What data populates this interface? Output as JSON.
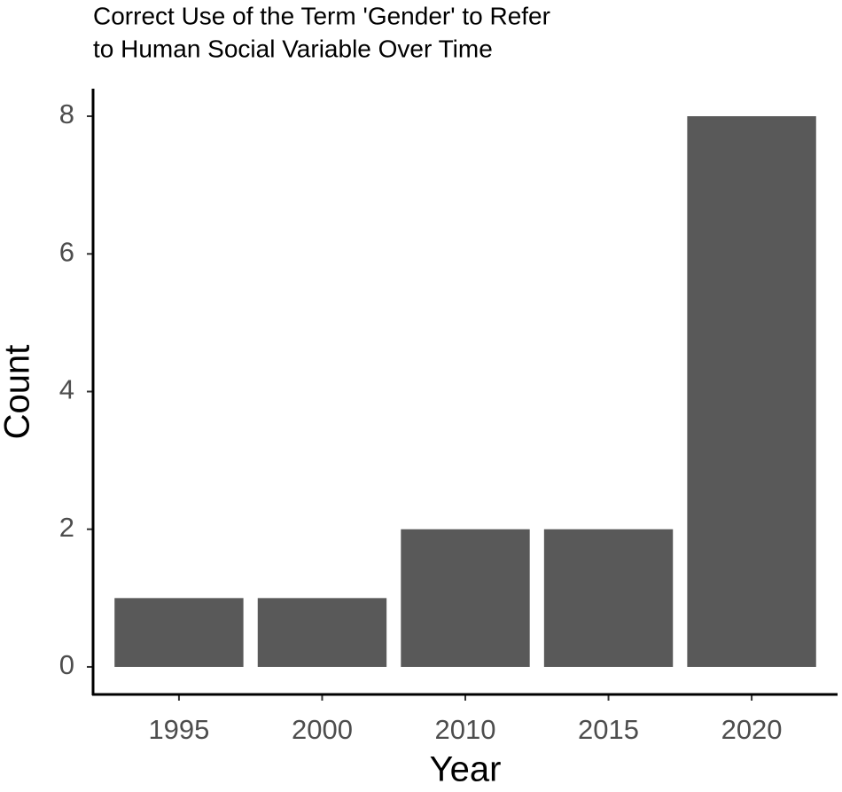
{
  "chart_data": {
    "type": "bar",
    "title_lines": [
      "Correct Use of the Term 'Gender' to Refer",
      "to Human Social Variable Over Time"
    ],
    "x_label": "Year",
    "y_label": "Count",
    "categories": [
      "1995",
      "2000",
      "2010",
      "2015",
      "2020"
    ],
    "values": [
      1,
      1,
      2,
      2,
      8
    ],
    "color": "#595959",
    "ylim": [
      -0.4,
      8.4
    ],
    "yticks": [
      0,
      2,
      4,
      6,
      8
    ],
    "grid": false
  }
}
